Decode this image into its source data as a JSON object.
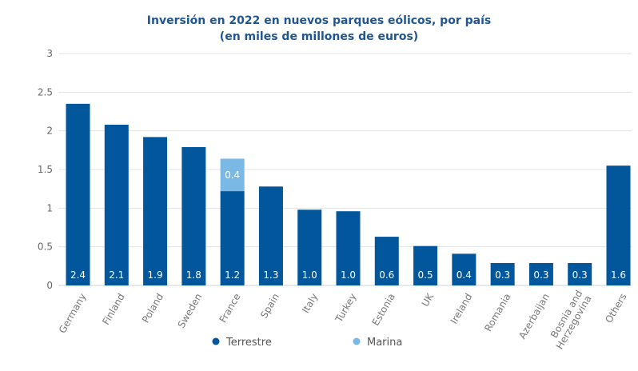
{
  "chart_data": {
    "type": "bar",
    "stacked": true,
    "title_lines": [
      "Inversión en 2022 en nuevos parques eólicos, por país",
      "(en miles de millones de euros)"
    ],
    "xlabel": "",
    "ylabel": "",
    "ylim": [
      0,
      3
    ],
    "yticks": [
      "0",
      "0.5",
      "1",
      "1.5",
      "2",
      "2.5",
      "3"
    ],
    "grid": true,
    "legend_position": "bottom",
    "categories": [
      "Germany",
      "Finland",
      "Poland",
      "Sweden",
      "France",
      "Spain",
      "Italy",
      "Turkey",
      "Estonia",
      "UK",
      "Ireland",
      "Romania",
      "Azerbaijan",
      "Bosnia and Herzegovina",
      "Others"
    ],
    "category_lines": [
      [
        "Germany"
      ],
      [
        "Finland"
      ],
      [
        "Poland"
      ],
      [
        "Sweden"
      ],
      [
        "France"
      ],
      [
        "Spain"
      ],
      [
        "Italy"
      ],
      [
        "Turkey"
      ],
      [
        "Estonia"
      ],
      [
        "UK"
      ],
      [
        "Ireland"
      ],
      [
        "Romania"
      ],
      [
        "Azerbaijan"
      ],
      [
        "Bosnia and",
        "Herzegovina"
      ],
      [
        "Others"
      ]
    ],
    "series": [
      {
        "name": "Terrestre",
        "color": "#02569b",
        "values": [
          2.35,
          2.08,
          1.92,
          1.79,
          1.22,
          1.28,
          0.98,
          0.96,
          0.63,
          0.51,
          0.41,
          0.29,
          0.29,
          0.29,
          1.55
        ],
        "labels": [
          "2.4",
          "2.1",
          "1.9",
          "1.8",
          "1.2",
          "1.3",
          "1.0",
          "1.0",
          "0.6",
          "0.5",
          "0.4",
          "0.3",
          "0.3",
          "0.3",
          "1.6"
        ]
      },
      {
        "name": "Marina",
        "color": "#7ab8e6",
        "values": [
          0,
          0,
          0,
          0,
          0.42,
          0,
          0,
          0,
          0,
          0,
          0,
          0,
          0,
          0,
          0
        ],
        "labels": [
          "",
          "",
          "",
          "",
          "0.4",
          "",
          "",
          "",
          "",
          "",
          "",
          "",
          "",
          "",
          ""
        ]
      }
    ]
  }
}
